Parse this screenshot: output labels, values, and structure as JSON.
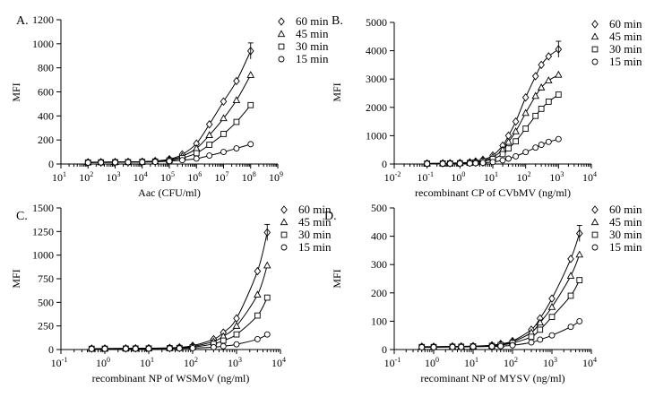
{
  "chart_data": [
    {
      "type": "line",
      "panel": "A.",
      "xlabel": "Aac (CFU/ml)",
      "ylabel": "MFI",
      "xscale": "log",
      "xlim": [
        10,
        1000000000
      ],
      "ylim": [
        0,
        1200
      ],
      "yticks": [
        0,
        200,
        400,
        600,
        800,
        1000,
        1200
      ],
      "xtick_exponents": [
        1,
        2,
        3,
        4,
        5,
        6,
        7,
        8,
        9
      ],
      "legend_position": "top-right",
      "x": [
        100,
        300,
        1000,
        3000,
        10000,
        30000,
        100000,
        300000,
        1000000,
        3000000,
        10000000,
        30000000,
        100000000
      ],
      "series": [
        {
          "name": "60 min",
          "marker": "diamond",
          "values": [
            15,
            16,
            17,
            18,
            20,
            25,
            40,
            80,
            170,
            330,
            520,
            690,
            940
          ]
        },
        {
          "name": "45 min",
          "marker": "triangle",
          "values": [
            14,
            15,
            16,
            17,
            19,
            23,
            35,
            65,
            130,
            240,
            380,
            530,
            740
          ]
        },
        {
          "name": "30 min",
          "marker": "square",
          "values": [
            13,
            14,
            15,
            16,
            18,
            21,
            30,
            50,
            90,
            160,
            250,
            350,
            490
          ]
        },
        {
          "name": "15 min",
          "marker": "circle",
          "values": [
            12,
            13,
            14,
            15,
            16,
            18,
            24,
            32,
            45,
            70,
            100,
            130,
            165
          ]
        }
      ]
    },
    {
      "type": "line",
      "panel": "B.",
      "xlabel": "recombinant CP of CVbMV (ng/ml)",
      "ylabel": "MFI",
      "xscale": "log",
      "xlim": [
        0.01,
        10000
      ],
      "ylim": [
        0,
        5000
      ],
      "yticks": [
        0,
        1000,
        2000,
        3000,
        4000,
        5000
      ],
      "xtick_exponents": [
        -2,
        -1,
        0,
        1,
        2,
        3,
        4
      ],
      "legend_position": "top-right",
      "x": [
        0.1,
        0.3,
        0.5,
        1,
        2,
        3,
        5,
        10,
        20,
        30,
        50,
        100,
        200,
        300,
        500,
        1000
      ],
      "series": [
        {
          "name": "60 min",
          "marker": "diamond",
          "values": [
            20,
            25,
            30,
            40,
            60,
            90,
            150,
            300,
            650,
            1000,
            1500,
            2350,
            3100,
            3500,
            3800,
            4050
          ]
        },
        {
          "name": "45 min",
          "marker": "triangle",
          "values": [
            18,
            22,
            27,
            35,
            50,
            75,
            120,
            240,
            500,
            780,
            1150,
            1800,
            2400,
            2700,
            2950,
            3150
          ]
        },
        {
          "name": "30 min",
          "marker": "square",
          "values": [
            15,
            18,
            22,
            28,
            40,
            55,
            90,
            180,
            350,
            550,
            800,
            1250,
            1700,
            1950,
            2200,
            2450
          ]
        },
        {
          "name": "15 min",
          "marker": "circle",
          "values": [
            10,
            12,
            14,
            17,
            22,
            28,
            40,
            70,
            130,
            190,
            270,
            420,
            580,
            680,
            780,
            880
          ]
        }
      ]
    },
    {
      "type": "line",
      "panel": "C.",
      "xlabel": "recombinant NP of WSMoV (ng/ml)",
      "ylabel": "MFI",
      "xscale": "log",
      "xlim": [
        0.1,
        10000
      ],
      "ylim": [
        0,
        1500
      ],
      "yticks": [
        0,
        250,
        500,
        750,
        1000,
        1250,
        1500
      ],
      "xtick_exponents": [
        -1,
        0,
        1,
        2,
        3,
        4
      ],
      "legend_position": "top-right",
      "x": [
        0.5,
        1,
        3,
        5,
        10,
        30,
        50,
        100,
        300,
        500,
        1000,
        3000,
        5000
      ],
      "series": [
        {
          "name": "60 min",
          "marker": "diamond",
          "values": [
            10,
            11,
            12,
            13,
            14,
            18,
            24,
            40,
            110,
            180,
            330,
            830,
            1240
          ]
        },
        {
          "name": "45 min",
          "marker": "triangle",
          "values": [
            9,
            10,
            11,
            12,
            13,
            16,
            20,
            32,
            85,
            140,
            250,
            580,
            890
          ]
        },
        {
          "name": "30 min",
          "marker": "square",
          "values": [
            8,
            9,
            10,
            11,
            12,
            14,
            17,
            25,
            60,
            95,
            160,
            360,
            550
          ]
        },
        {
          "name": "15 min",
          "marker": "circle",
          "values": [
            7,
            8,
            9,
            9,
            10,
            11,
            12,
            15,
            25,
            35,
            55,
            110,
            160
          ]
        }
      ]
    },
    {
      "type": "line",
      "panel": "D.",
      "xlabel": "recominant NP of MYSV (ng/ml)",
      "ylabel": "MFI",
      "xscale": "log",
      "xlim": [
        0.1,
        10000
      ],
      "ylim": [
        0,
        500
      ],
      "yticks": [
        0,
        100,
        200,
        300,
        400,
        500
      ],
      "xtick_exponents": [
        -1,
        0,
        1,
        2,
        3,
        4
      ],
      "legend_position": "top-right",
      "x": [
        0.5,
        1,
        3,
        5,
        10,
        30,
        50,
        100,
        300,
        500,
        1000,
        3000,
        5000
      ],
      "series": [
        {
          "name": "60 min",
          "marker": "diamond",
          "values": [
            10,
            10,
            11,
            11,
            12,
            15,
            20,
            30,
            70,
            110,
            180,
            320,
            410
          ]
        },
        {
          "name": "45 min",
          "marker": "triangle",
          "values": [
            10,
            10,
            11,
            11,
            12,
            14,
            18,
            27,
            60,
            95,
            150,
            260,
            335
          ]
        },
        {
          "name": "30 min",
          "marker": "square",
          "values": [
            9,
            9,
            10,
            10,
            11,
            13,
            16,
            23,
            45,
            70,
            115,
            190,
            245
          ]
        },
        {
          "name": "15 min",
          "marker": "circle",
          "values": [
            8,
            8,
            9,
            9,
            10,
            11,
            12,
            15,
            25,
            35,
            50,
            80,
            100
          ]
        }
      ]
    }
  ]
}
